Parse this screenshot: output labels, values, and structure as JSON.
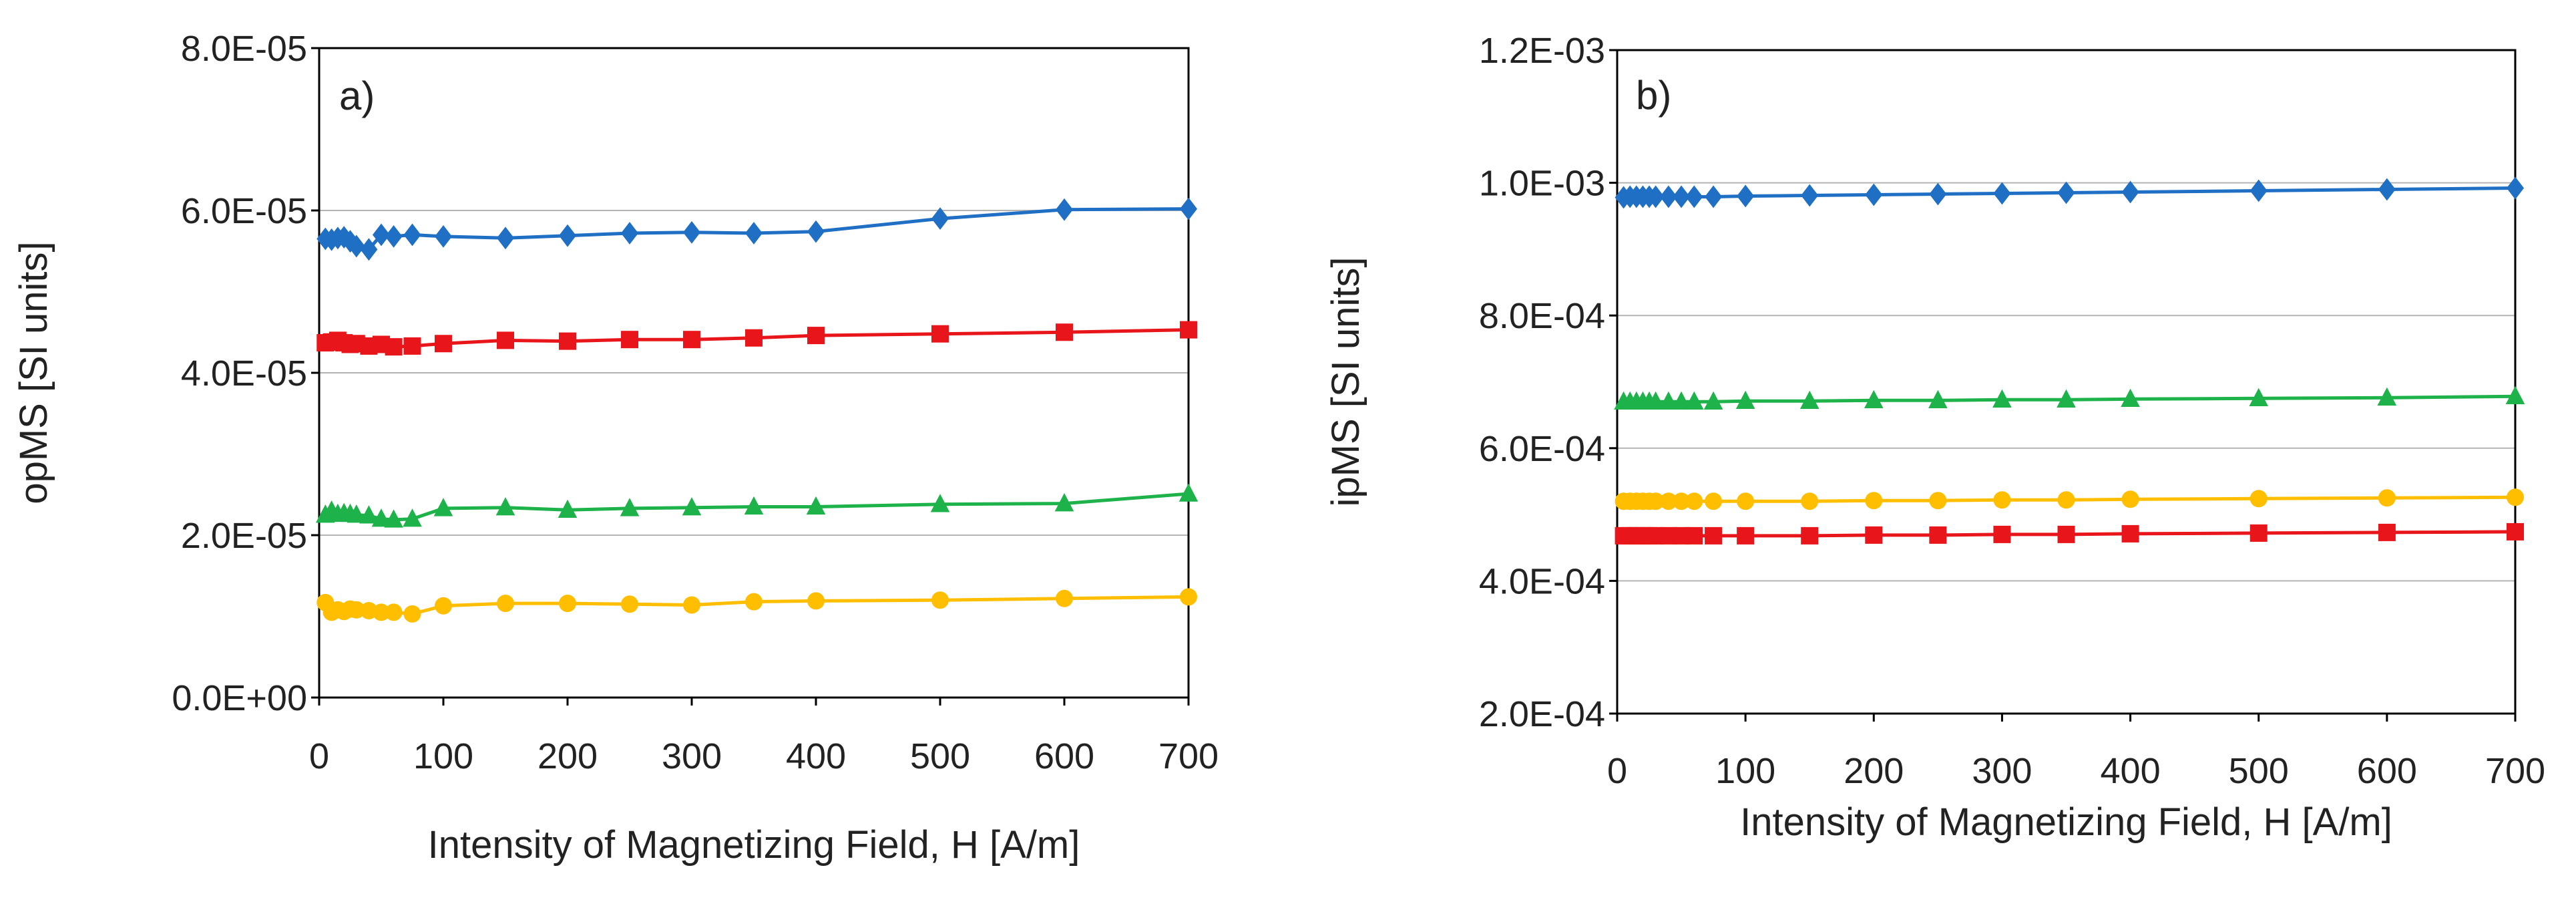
{
  "chart_data": [
    {
      "type": "line",
      "panel_label": "a)",
      "xlabel": "Intensity of Magnetizing Field, H  [A/m]",
      "ylabel": "opMS  [SI units]",
      "xlim": [
        0,
        700
      ],
      "ylim": [
        0,
        8e-05
      ],
      "xticks": [
        0,
        100,
        200,
        300,
        400,
        500,
        600,
        700
      ],
      "xtick_labels": [
        "0",
        "100",
        "200",
        "300",
        "400",
        "500",
        "600",
        "700"
      ],
      "yticks": [
        0,
        2e-05,
        4e-05,
        6e-05,
        8e-05
      ],
      "ytick_labels": [
        "0.0E+00",
        "2.0E-05",
        "4.0E-05",
        "6.0E-05",
        "8.0E-05"
      ],
      "grid": true,
      "x": [
        5,
        10,
        15,
        20,
        25,
        30,
        40,
        50,
        60,
        75,
        100,
        150,
        200,
        250,
        300,
        350,
        400,
        500,
        600,
        700
      ],
      "series": [
        {
          "name": "blue",
          "color": "#1f6fc5",
          "marker": "diamond",
          "values": [
            5.65e-05,
            5.64e-05,
            5.66e-05,
            5.67e-05,
            5.62e-05,
            5.56e-05,
            5.52e-05,
            5.7e-05,
            5.68e-05,
            5.7e-05,
            5.68e-05,
            5.66e-05,
            5.69e-05,
            5.72e-05,
            5.73e-05,
            5.72e-05,
            5.74e-05,
            5.9e-05,
            6.01e-05,
            6.02e-05
          ]
        },
        {
          "name": "red",
          "color": "#e8161b",
          "marker": "square",
          "values": [
            4.37e-05,
            4.38e-05,
            4.4e-05,
            4.37e-05,
            4.35e-05,
            4.36e-05,
            4.33e-05,
            4.35e-05,
            4.32e-05,
            4.33e-05,
            4.36e-05,
            4.4e-05,
            4.39e-05,
            4.41e-05,
            4.41e-05,
            4.43e-05,
            4.46e-05,
            4.48e-05,
            4.5e-05,
            4.53e-05
          ]
        },
        {
          "name": "green",
          "color": "#1db24a",
          "marker": "triangle",
          "values": [
            2.25e-05,
            2.3e-05,
            2.26e-05,
            2.27e-05,
            2.26e-05,
            2.25e-05,
            2.24e-05,
            2.2e-05,
            2.19e-05,
            2.2e-05,
            2.33e-05,
            2.34e-05,
            2.31e-05,
            2.33e-05,
            2.34e-05,
            2.35e-05,
            2.35e-05,
            2.38e-05,
            2.39e-05,
            2.51e-05
          ]
        },
        {
          "name": "yellow",
          "color": "#ffbf00",
          "marker": "circle",
          "values": [
            1.17e-05,
            1.05e-05,
            1.08e-05,
            1.06e-05,
            1.09e-05,
            1.08e-05,
            1.07e-05,
            1.05e-05,
            1.05e-05,
            1.03e-05,
            1.13e-05,
            1.16e-05,
            1.16e-05,
            1.15e-05,
            1.14e-05,
            1.18e-05,
            1.19e-05,
            1.2e-05,
            1.22e-05,
            1.24e-05
          ]
        }
      ]
    },
    {
      "type": "line",
      "panel_label": "b)",
      "xlabel": "Intensity of Magnetizing Field, H  [A/m]",
      "ylabel": "ipMS  [SI units]",
      "xlim": [
        0,
        700
      ],
      "ylim": [
        0.0002,
        0.0012
      ],
      "xticks": [
        0,
        100,
        200,
        300,
        400,
        500,
        600,
        700
      ],
      "xtick_labels": [
        "0",
        "100",
        "200",
        "300",
        "400",
        "500",
        "600",
        "700"
      ],
      "yticks": [
        0.0002,
        0.0004,
        0.0006,
        0.0008,
        0.001,
        0.0012
      ],
      "ytick_labels": [
        "2.0E-04",
        "4.0E-04",
        "6.0E-04",
        "8.0E-04",
        "1.0E-03",
        "1.2E-03"
      ],
      "grid": true,
      "x": [
        5,
        10,
        15,
        20,
        25,
        30,
        40,
        50,
        60,
        75,
        100,
        150,
        200,
        250,
        300,
        350,
        400,
        500,
        600,
        700
      ],
      "series": [
        {
          "name": "blue",
          "color": "#1f6fc5",
          "marker": "diamond",
          "values": [
            0.000978,
            0.000979,
            0.000979,
            0.000979,
            0.000979,
            0.000979,
            0.000979,
            0.000979,
            0.000979,
            0.000979,
            0.00098,
            0.000981,
            0.000982,
            0.000983,
            0.000984,
            0.000985,
            0.000986,
            0.000988,
            0.00099,
            0.000992
          ]
        },
        {
          "name": "green",
          "color": "#1db24a",
          "marker": "triangle",
          "values": [
            0.00067,
            0.00067,
            0.00067,
            0.00067,
            0.00067,
            0.00067,
            0.00067,
            0.00067,
            0.00067,
            0.00067,
            0.000671,
            0.000671,
            0.000672,
            0.000672,
            0.000673,
            0.000673,
            0.000674,
            0.000675,
            0.000676,
            0.000678
          ]
        },
        {
          "name": "yellow",
          "color": "#ffbf00",
          "marker": "circle",
          "values": [
            0.00052,
            0.00052,
            0.00052,
            0.00052,
            0.00052,
            0.00052,
            0.00052,
            0.00052,
            0.00052,
            0.00052,
            0.00052,
            0.00052,
            0.000521,
            0.000521,
            0.000522,
            0.000522,
            0.000523,
            0.000524,
            0.000525,
            0.000526
          ]
        },
        {
          "name": "red",
          "color": "#e8161b",
          "marker": "square",
          "values": [
            0.000468,
            0.000468,
            0.000468,
            0.000468,
            0.000468,
            0.000468,
            0.000468,
            0.000468,
            0.000468,
            0.000468,
            0.000468,
            0.000468,
            0.000469,
            0.000469,
            0.00047,
            0.00047,
            0.000471,
            0.000472,
            0.000473,
            0.000474
          ]
        }
      ]
    }
  ]
}
